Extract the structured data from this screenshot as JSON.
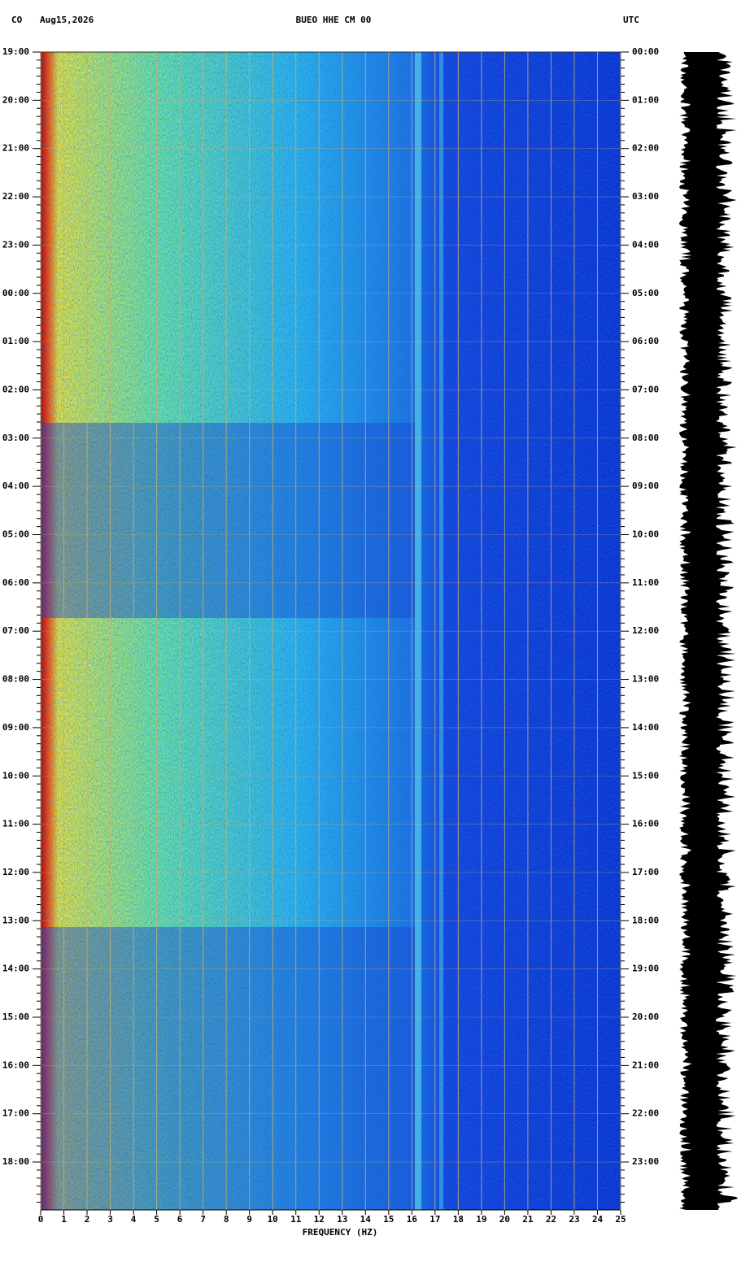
{
  "chart_data": {
    "type": "spectrogram",
    "network": "CO",
    "date": "Aug15,2026",
    "station": "BUEO HHE CM 00",
    "timezone": "UTC",
    "xlabel": "FREQUENCY (HZ)",
    "xlim": [
      0,
      25
    ],
    "xticks": [
      0,
      1,
      2,
      3,
      4,
      5,
      6,
      7,
      8,
      9,
      10,
      11,
      12,
      13,
      14,
      15,
      16,
      17,
      18,
      19,
      20,
      21,
      22,
      23,
      24,
      25
    ],
    "grid": true,
    "left_time_labels": [
      "19:00",
      "20:00",
      "21:00",
      "22:00",
      "23:00",
      "00:00",
      "01:00",
      "02:00",
      "03:00",
      "04:00",
      "05:00",
      "06:00",
      "07:00",
      "08:00",
      "09:00",
      "10:00",
      "11:00",
      "12:00",
      "13:00",
      "14:00",
      "15:00",
      "16:00",
      "17:00",
      "18:00"
    ],
    "right_time_labels": [
      "00:00",
      "01:00",
      "02:00",
      "03:00",
      "04:00",
      "05:00",
      "06:00",
      "07:00",
      "08:00",
      "09:00",
      "10:00",
      "11:00",
      "12:00",
      "13:00",
      "14:00",
      "15:00",
      "16:00",
      "17:00",
      "18:00",
      "19:00",
      "20:00",
      "21:00",
      "22:00",
      "23:00"
    ]
  }
}
